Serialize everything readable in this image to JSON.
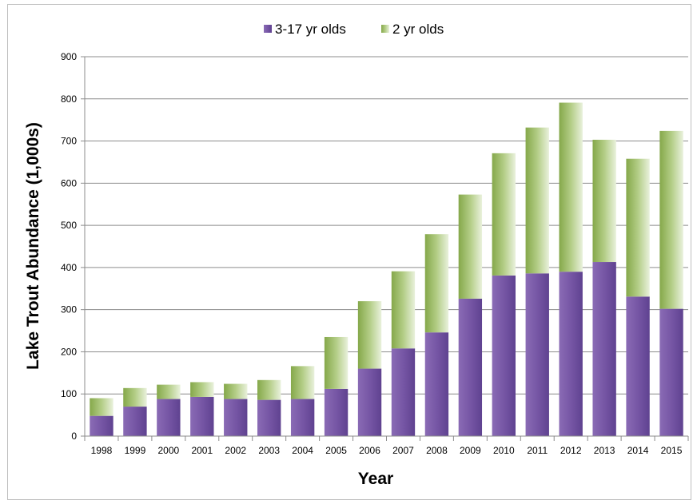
{
  "chart_data": {
    "type": "bar",
    "stacked": true,
    "categories": [
      "1998",
      "1999",
      "2000",
      "2001",
      "2002",
      "2003",
      "2004",
      "2005",
      "2006",
      "2007",
      "2008",
      "2009",
      "2010",
      "2011",
      "2012",
      "2013",
      "2014",
      "2015"
    ],
    "series": [
      {
        "name": "3-17 yr olds",
        "color": "#7b5aa6",
        "values": [
          48,
          70,
          88,
          93,
          88,
          86,
          88,
          112,
          160,
          208,
          246,
          326,
          381,
          386,
          390,
          413,
          331,
          302
        ]
      },
      {
        "name": "2 yr olds",
        "color": "#9dbb61",
        "values": [
          42,
          44,
          34,
          35,
          36,
          47,
          78,
          123,
          160,
          183,
          233,
          247,
          290,
          346,
          401,
          290,
          327,
          422
        ]
      }
    ],
    "title": "",
    "xlabel": "Year",
    "ylabel": "Lake Trout Abundance (1,000s)",
    "ylim": [
      0,
      900
    ],
    "yticks": [
      0,
      100,
      200,
      300,
      400,
      500,
      600,
      700,
      800,
      900
    ],
    "grid": true,
    "legend_position": "top"
  }
}
